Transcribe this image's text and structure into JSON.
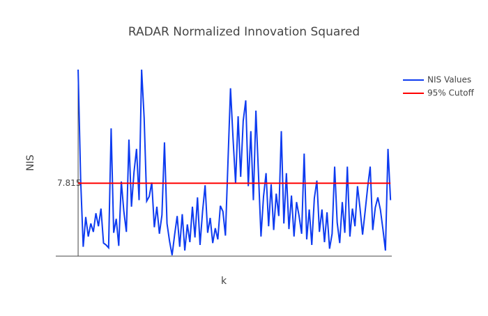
{
  "chart_data": {
    "type": "line",
    "title": "RADAR Normalized Innovation Squared",
    "x_label": "k",
    "y_label": "NIS",
    "xlim": [
      -17.6,
      247
    ],
    "ylim": [
      0,
      20
    ],
    "yticks": [
      7.815
    ],
    "legend": "top-right",
    "series": [
      {
        "name": "NIS Values",
        "color": "#0d3bf0",
        "x": [
          0,
          2,
          4,
          6,
          8,
          10,
          12,
          14,
          16,
          18,
          20,
          22,
          24,
          26,
          28,
          30,
          32,
          34,
          36,
          38,
          40,
          42,
          44,
          46,
          48,
          50,
          52,
          54,
          56,
          58,
          60,
          62,
          64,
          66,
          68,
          70,
          72,
          74,
          76,
          78,
          80,
          82,
          84,
          86,
          88,
          90,
          92,
          94,
          96,
          98,
          100,
          102,
          104,
          106,
          108,
          110,
          112,
          114,
          116,
          118,
          120,
          122,
          124,
          126,
          128,
          130,
          132,
          134,
          136,
          138,
          140,
          142,
          144,
          146,
          148,
          150,
          152,
          154,
          156,
          158,
          160,
          162,
          164,
          166,
          168,
          170,
          172,
          174,
          176,
          178,
          180,
          182,
          184,
          186,
          188,
          190,
          192,
          194,
          196,
          198,
          200,
          202,
          204,
          206,
          208,
          210,
          212,
          214,
          216,
          218,
          220,
          222,
          224,
          226,
          228,
          230,
          232,
          234,
          236,
          238,
          240,
          242,
          244,
          246
        ],
        "values": [
          20.0,
          8.2,
          1.0,
          4.2,
          2.1,
          3.5,
          2.6,
          4.6,
          3.2,
          5.1,
          1.4,
          1.2,
          0.9,
          13.7,
          2.5,
          4.0,
          1.1,
          8.0,
          4.8,
          2.6,
          12.5,
          5.3,
          9.0,
          11.5,
          6.0,
          20.0,
          14.8,
          5.9,
          6.4,
          7.9,
          3.1,
          5.3,
          2.4,
          4.4,
          12.2,
          3.5,
          1.6,
          0.1,
          2.3,
          4.3,
          1.0,
          4.5,
          0.6,
          3.4,
          1.5,
          5.3,
          2.0,
          6.3,
          1.2,
          4.8,
          7.6,
          2.5,
          4.1,
          1.4,
          3.0,
          1.8,
          5.4,
          4.8,
          2.2,
          10.1,
          18.0,
          12.6,
          7.8,
          15.0,
          8.5,
          14.5,
          16.7,
          7.5,
          13.4,
          6.0,
          15.6,
          8.9,
          2.1,
          6.4,
          8.9,
          3.2,
          7.7,
          2.8,
          6.7,
          4.3,
          13.4,
          3.5,
          8.9,
          2.9,
          6.5,
          2.1,
          5.8,
          4.3,
          2.4,
          11.0,
          1.8,
          5.0,
          1.2,
          6.2,
          8.1,
          2.6,
          5.0,
          1.5,
          4.7,
          0.8,
          2.4,
          9.6,
          3.6,
          1.4,
          5.8,
          2.5,
          9.6,
          2.1,
          5.1,
          3.2,
          7.5,
          5.1,
          2.3,
          4.8,
          7.4,
          9.6,
          2.8,
          5.2,
          6.3,
          5.0,
          2.9,
          0.6,
          11.5,
          6.0
        ]
      },
      {
        "name": "95% Cutoff",
        "color": "#ff0000",
        "x": [
          0,
          246
        ],
        "values": [
          7.815,
          7.815
        ]
      }
    ]
  }
}
